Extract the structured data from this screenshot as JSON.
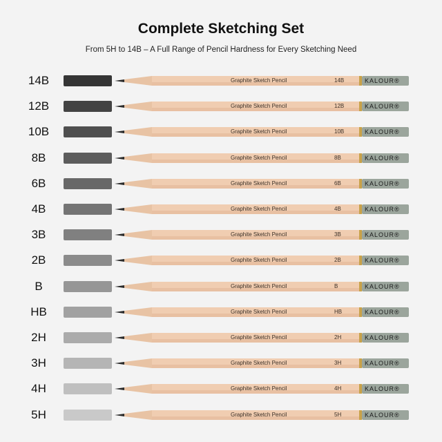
{
  "header": {
    "title": "Complete Sketching Set",
    "subtitle": "From 5H to 14B – A Full Range of Pencil Hardness for Every Sketching Need"
  },
  "pencil": {
    "label": "Graphite Sketch Pencil",
    "brand": "KALOUR®",
    "wood_color": "#f0cdb1",
    "cap_color": "#9ba59c"
  },
  "rows": [
    {
      "grade": "14B",
      "tone": "#2b2b2b"
    },
    {
      "grade": "12B",
      "tone": "#3a3a3a"
    },
    {
      "grade": "10B",
      "tone": "#474747"
    },
    {
      "grade": "8B",
      "tone": "#545454"
    },
    {
      "grade": "6B",
      "tone": "#616161"
    },
    {
      "grade": "4B",
      "tone": "#6e6e6e"
    },
    {
      "grade": "3B",
      "tone": "#7a7a7a"
    },
    {
      "grade": "2B",
      "tone": "#868686"
    },
    {
      "grade": "B",
      "tone": "#929292"
    },
    {
      "grade": "HB",
      "tone": "#9d9d9d"
    },
    {
      "grade": "2H",
      "tone": "#a8a8a8"
    },
    {
      "grade": "3H",
      "tone": "#b2b2b2"
    },
    {
      "grade": "4H",
      "tone": "#bdbdbd"
    },
    {
      "grade": "5H",
      "tone": "#c7c7c7"
    }
  ]
}
